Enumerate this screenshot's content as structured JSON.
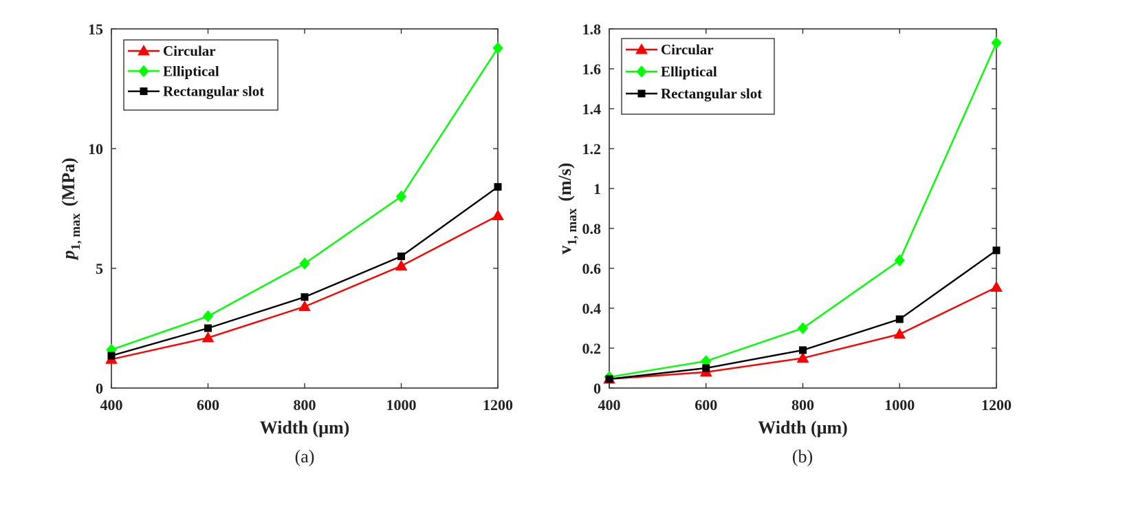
{
  "chart_data": [
    {
      "type": "line",
      "caption": "(a)",
      "xlabel": "Width (μm)",
      "ylabel": {
        "main": "p",
        "sub": "1, max",
        "unit": "(MPa)"
      },
      "xlim": [
        400,
        1200
      ],
      "ylim": [
        0,
        15
      ],
      "xticks": [
        400,
        600,
        800,
        1000,
        1200
      ],
      "yticks": [
        0,
        5,
        10,
        15
      ],
      "grid": false,
      "legend": "top-left",
      "x": [
        400,
        600,
        800,
        1000,
        1200
      ],
      "series": [
        {
          "name": "Circular",
          "color": "#ff0000",
          "marker": "triangle",
          "values": [
            1.2,
            2.1,
            3.4,
            5.1,
            7.2
          ]
        },
        {
          "name": "Elliptical",
          "color": "#00ff00",
          "marker": "diamond",
          "values": [
            1.6,
            3.0,
            5.2,
            8.0,
            14.2
          ]
        },
        {
          "name": "Rectangular slot",
          "color": "#000000",
          "marker": "square",
          "values": [
            1.35,
            2.5,
            3.8,
            5.5,
            8.4
          ]
        }
      ]
    },
    {
      "type": "line",
      "caption": "(b)",
      "xlabel": "Width (μm)",
      "ylabel": {
        "main": "v",
        "sub": "1, max",
        "unit": "(m/s)"
      },
      "xlim": [
        400,
        1200
      ],
      "ylim": [
        0,
        1.8
      ],
      "xticks": [
        400,
        600,
        800,
        1000,
        1200
      ],
      "yticks": [
        0,
        0.2,
        0.4,
        0.6,
        0.8,
        1,
        1.2,
        1.4,
        1.6,
        1.8
      ],
      "grid": false,
      "legend": "top-left",
      "x": [
        400,
        600,
        800,
        1000,
        1200
      ],
      "series": [
        {
          "name": "Circular",
          "color": "#ff0000",
          "marker": "triangle",
          "values": [
            0.045,
            0.08,
            0.15,
            0.27,
            0.505
          ]
        },
        {
          "name": "Elliptical",
          "color": "#00ff00",
          "marker": "diamond",
          "values": [
            0.055,
            0.135,
            0.3,
            0.64,
            1.73
          ]
        },
        {
          "name": "Rectangular slot",
          "color": "#000000",
          "marker": "square",
          "values": [
            0.045,
            0.1,
            0.19,
            0.345,
            0.69
          ]
        }
      ]
    }
  ]
}
